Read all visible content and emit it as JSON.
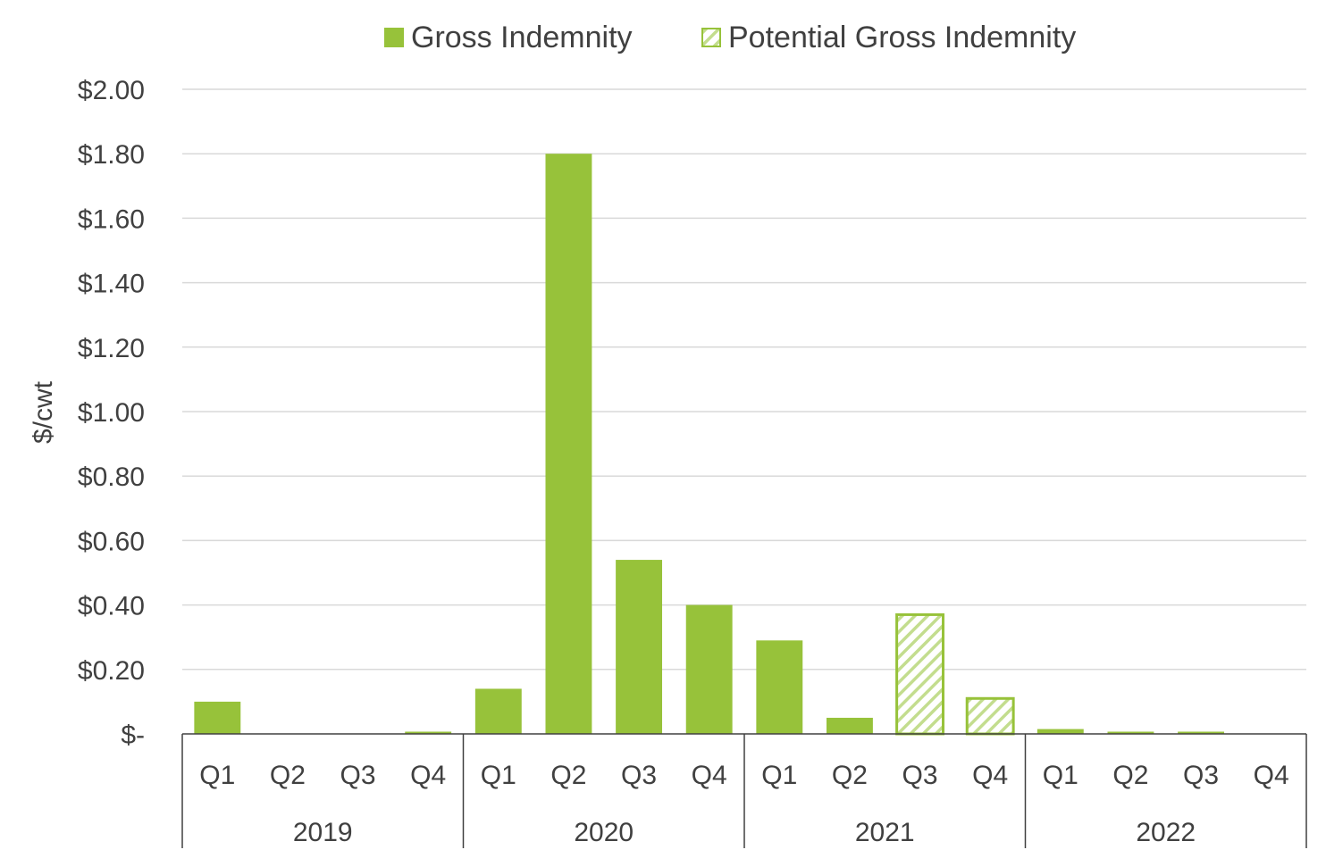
{
  "chart_data": {
    "type": "bar",
    "ylabel": "$/cwt",
    "ylim": [
      0,
      2.0
    ],
    "y_tick_step": 0.2,
    "y_ticks": [
      "$-",
      "$0.20",
      "$0.40",
      "$0.60",
      "$0.80",
      "$1.00",
      "$1.20",
      "$1.40",
      "$1.60",
      "$1.80",
      "$2.00"
    ],
    "grid": true,
    "legend_position": "top",
    "years": [
      "2019",
      "2020",
      "2021",
      "2022"
    ],
    "categories": [
      "Q1",
      "Q2",
      "Q3",
      "Q4",
      "Q1",
      "Q2",
      "Q3",
      "Q4",
      "Q1",
      "Q2",
      "Q3",
      "Q4",
      "Q1",
      "Q2",
      "Q3",
      "Q4"
    ],
    "series": [
      {
        "name": "Gross Indemnity",
        "color": "#97c23a",
        "pattern": "solid",
        "values": [
          0.1,
          0,
          0,
          0.005,
          0.14,
          1.8,
          0.54,
          0.4,
          0.29,
          0.05,
          null,
          null,
          0.015,
          0.004,
          0.004,
          0
        ]
      },
      {
        "name": "Potential Gross Indemnity",
        "color": "#97c23a",
        "pattern": "hatched",
        "values": [
          null,
          null,
          null,
          null,
          null,
          null,
          null,
          null,
          null,
          null,
          0.37,
          0.11,
          null,
          null,
          null,
          null
        ]
      }
    ]
  }
}
